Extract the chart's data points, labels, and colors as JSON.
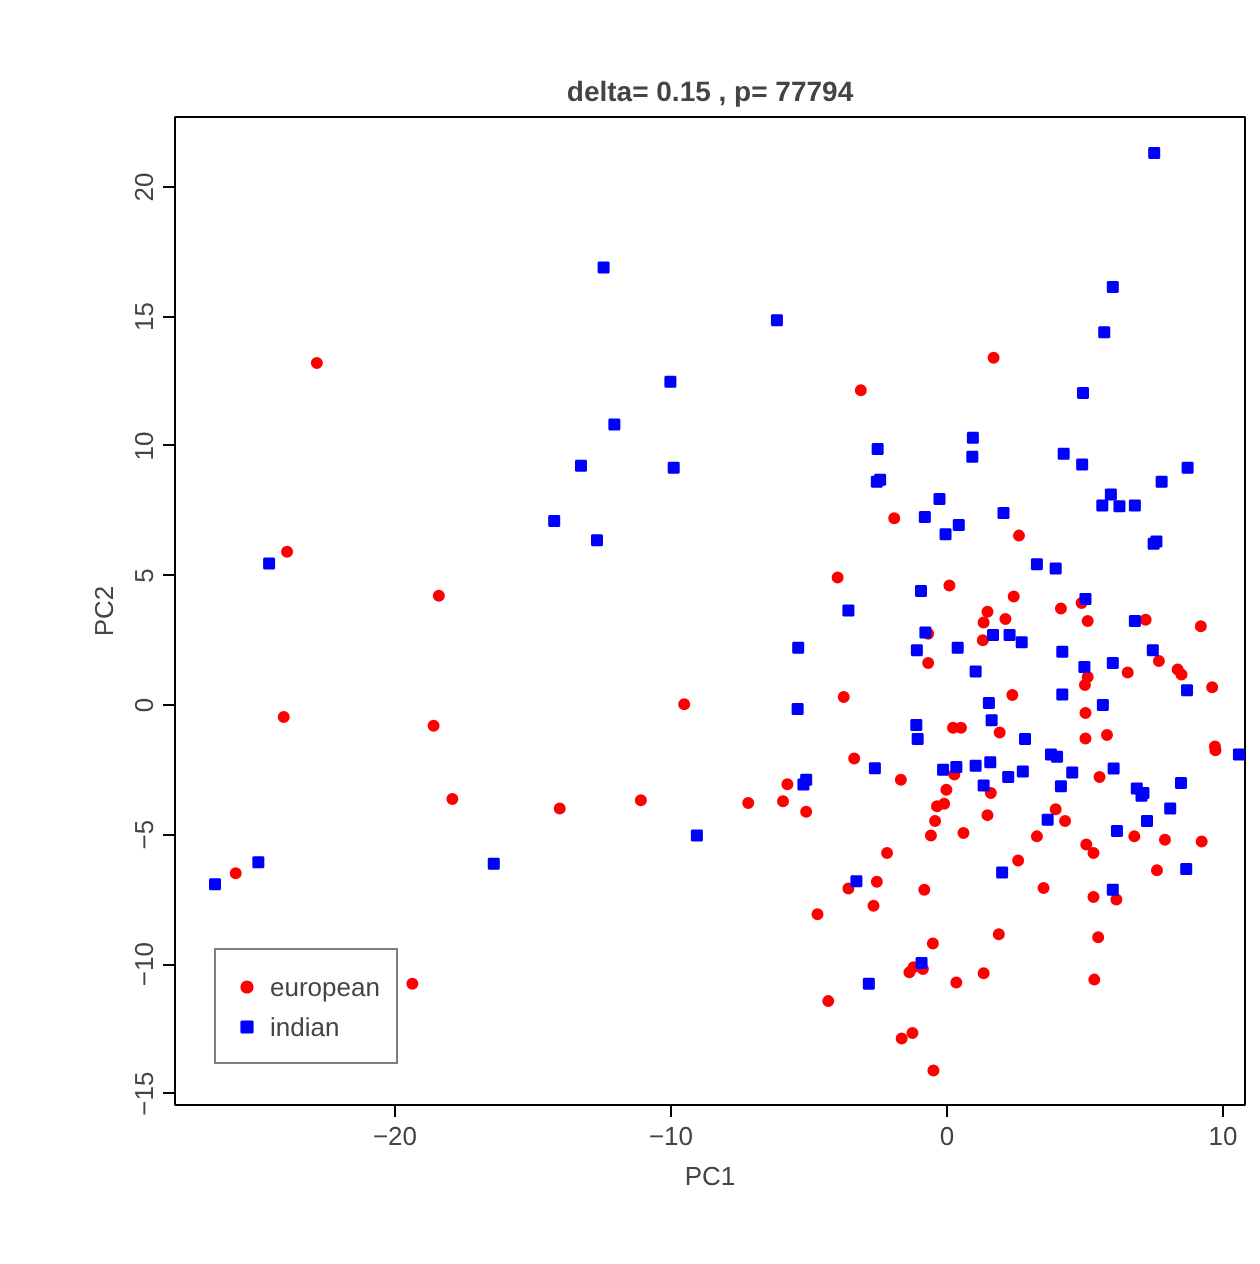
{
  "chart_data": {
    "type": "scatter",
    "title": "delta= 0.15 , p= 77794",
    "xlabel": "PC1",
    "ylabel": "PC2",
    "xlim": [
      -27.97,
      10.8
    ],
    "ylim": [
      -15.44,
      22.7
    ],
    "xticks": [
      -20,
      -10,
      0,
      10
    ],
    "yticks": [
      -15,
      -10,
      -5,
      0,
      5,
      10,
      15,
      20
    ],
    "grid": false,
    "legend": "bottom left",
    "series": [
      {
        "name": "european",
        "color": "#ff0000",
        "marker": "circle",
        "x": [
          -22.83,
          -23.91,
          -18.41,
          -24.03,
          -18.6,
          -9.52,
          -17.92,
          -14.03,
          -11.09,
          -25.77,
          -19.37,
          -7.2,
          -5.94,
          -5.1,
          -5.78,
          1.69,
          -3.12,
          -1.91,
          -3.96,
          0.09,
          2.61,
          2.42,
          4.88,
          1.47,
          2.12,
          1.33,
          4.13,
          5.1,
          7.2,
          9.2,
          1.3,
          7.68,
          5.1,
          6.55,
          8.36,
          8.5,
          5.0,
          9.61,
          2.37,
          5.02,
          1.91,
          5.02,
          5.8,
          9.71,
          9.73,
          1.59,
          5.53,
          1.47,
          3.94,
          4.28,
          3.26,
          5.05,
          5.31,
          6.79,
          7.9,
          9.23,
          2.58,
          7.61,
          3.5,
          5.31,
          6.14,
          1.88,
          5.48,
          1.33,
          5.34,
          -0.68,
          -0.68,
          -3.74,
          0.22,
          0.51,
          -3.36,
          -1.67,
          0.27,
          -0.02,
          -0.36,
          -0.1,
          -0.43,
          -0.58,
          0.6,
          -2.17,
          -2.54,
          -3.57,
          -0.82,
          -2.66,
          -4.69,
          -0.51,
          -1.21,
          -1.36,
          -0.87,
          0.34,
          -4.3,
          -1.64,
          -1.25,
          -0.49
        ],
        "values": [
          13.2,
          5.92,
          4.22,
          -0.46,
          -0.8,
          0.03,
          -3.63,
          -3.99,
          -3.68,
          -6.49,
          -10.76,
          -3.78,
          -3.71,
          -4.12,
          -3.06,
          13.41,
          12.15,
          7.21,
          4.92,
          4.61,
          6.54,
          4.19,
          3.94,
          3.6,
          3.32,
          3.19,
          3.73,
          3.24,
          3.29,
          3.04,
          2.5,
          1.7,
          1.08,
          1.26,
          1.37,
          1.18,
          0.77,
          0.69,
          0.39,
          -0.31,
          -1.06,
          -1.29,
          -1.16,
          -1.6,
          -1.75,
          -3.4,
          -2.78,
          -4.25,
          -4.02,
          -4.48,
          -5.07,
          -5.38,
          -5.71,
          -5.07,
          -5.2,
          -5.27,
          -6.0,
          -6.38,
          -7.06,
          -7.41,
          -7.51,
          -8.85,
          -8.96,
          -10.35,
          -10.6,
          2.75,
          1.62,
          0.31,
          -0.88,
          -0.88,
          -2.06,
          -2.88,
          -2.68,
          -3.27,
          -3.91,
          -3.81,
          -4.48,
          -5.04,
          -4.94,
          -5.71,
          -6.82,
          -7.08,
          -7.13,
          -7.75,
          -8.08,
          -9.21,
          -10.12,
          -10.32,
          -10.19,
          -10.71,
          -11.43,
          -12.87,
          -12.66,
          -14.11
        ]
      },
      {
        "name": "indian",
        "color": "#0000ff",
        "marker": "square",
        "x": [
          -12.44,
          -10.02,
          -12.05,
          -13.26,
          -9.9,
          -14.23,
          -12.68,
          -24.56,
          -9.06,
          -24.95,
          -26.52,
          -16.42,
          -5.2,
          -5.1,
          -6.16,
          0.94,
          0.92,
          -2.51,
          -2.54,
          -2.42,
          -0.27,
          -0.8,
          0.43,
          -0.05,
          2.05,
          -0.94,
          7.51,
          6.01,
          5.7,
          4.93,
          4.23,
          4.9,
          8.72,
          7.78,
          5.94,
          5.63,
          6.25,
          6.81,
          7.49,
          7.59,
          3.26,
          3.94,
          5.02,
          6.81,
          1.67,
          2.27,
          2.71,
          4.18,
          7.46,
          4.98,
          6.01,
          8.7,
          1.52,
          4.18,
          5.65,
          1.62,
          2.83,
          10.58,
          1.57,
          3.77,
          3.99,
          1.33,
          2.22,
          2.75,
          4.54,
          6.04,
          4.13,
          6.88,
          7.12,
          7.05,
          8.48,
          8.09,
          3.65,
          7.25,
          6.16,
          2.0,
          8.67,
          6.01,
          -3.57,
          -0.78,
          -5.39,
          -1.09,
          0.39,
          1.04,
          -5.41,
          -1.11,
          -1.06,
          -2.61,
          -0.14,
          0.34,
          1.04,
          -3.28,
          -0.92,
          -2.83
        ],
        "values": [
          16.89,
          12.48,
          10.83,
          9.24,
          9.16,
          7.1,
          6.36,
          5.46,
          -5.04,
          -6.07,
          -6.92,
          -6.13,
          -3.07,
          -2.88,
          14.85,
          10.32,
          9.58,
          9.88,
          8.62,
          8.7,
          7.95,
          7.26,
          6.95,
          6.59,
          7.41,
          4.4,
          21.31,
          16.14,
          14.39,
          12.05,
          9.7,
          9.29,
          9.16,
          8.62,
          8.13,
          7.7,
          7.67,
          7.7,
          6.23,
          6.31,
          5.43,
          5.27,
          4.09,
          3.24,
          2.7,
          2.7,
          2.42,
          2.06,
          2.11,
          1.47,
          1.62,
          0.57,
          0.08,
          0.41,
          0.0,
          -0.59,
          -1.31,
          -1.91,
          -2.21,
          -1.91,
          -2.0,
          -3.11,
          -2.78,
          -2.57,
          -2.6,
          -2.45,
          -3.14,
          -3.22,
          -3.4,
          -3.5,
          -3.01,
          -3.99,
          -4.43,
          -4.48,
          -4.86,
          -6.46,
          -6.33,
          -7.13,
          3.65,
          2.8,
          2.21,
          2.11,
          2.21,
          1.29,
          -0.15,
          -0.77,
          -1.31,
          -2.44,
          -2.5,
          -2.39,
          -2.34,
          -6.8,
          -9.96,
          -10.76
        ]
      }
    ]
  }
}
